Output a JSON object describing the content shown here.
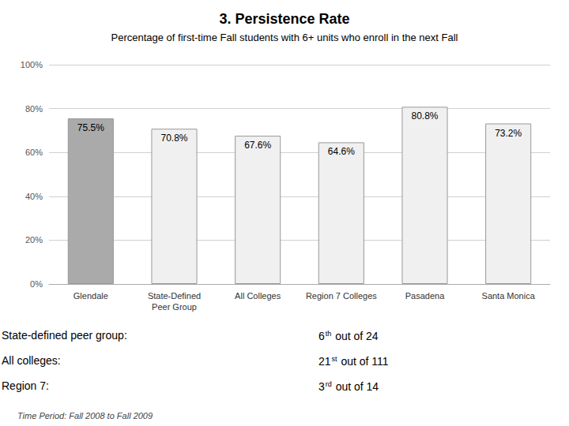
{
  "chart_data": {
    "type": "bar",
    "title": "3. Persistence Rate",
    "subtitle": "Percentage of first-time Fall students with 6+ units who enroll in the next Fall",
    "categories": [
      "Glendale",
      "State-Defined\nPeer Group",
      "All Colleges",
      "Region 7 Colleges",
      "Pasadena",
      "Santa Monica"
    ],
    "values": [
      75.5,
      70.8,
      67.6,
      64.6,
      80.8,
      73.2
    ],
    "value_labels": [
      "75.5%",
      "70.8%",
      "67.6%",
      "64.6%",
      "80.8%",
      "73.2%"
    ],
    "data_labels": true,
    "colors": [
      "#aaaaaa",
      "#f0f0f0",
      "#f0f0f0",
      "#f0f0f0",
      "#f0f0f0",
      "#f0f0f0"
    ],
    "ylim": [
      0,
      100
    ],
    "yticks": [
      {
        "value": 0,
        "label": "0%"
      },
      {
        "value": 20,
        "label": "20%"
      },
      {
        "value": 40,
        "label": "40%"
      },
      {
        "value": 60,
        "label": "60%"
      },
      {
        "value": 80,
        "label": "80%"
      },
      {
        "value": 100,
        "label": "100%"
      }
    ],
    "grid": true,
    "annotations": [
      {
        "label": "State-defined peer group:",
        "rank": "6",
        "sup": "th",
        "rest": " out of 24"
      },
      {
        "label": "All colleges:",
        "rank": "21",
        "sup": "st",
        "rest": " out of 111"
      },
      {
        "label": "Region 7:",
        "rank": "3",
        "sup": "rd",
        "rest": " out of 14"
      }
    ],
    "footnote": "Time Period: Fall 2008 to Fall 2009"
  }
}
